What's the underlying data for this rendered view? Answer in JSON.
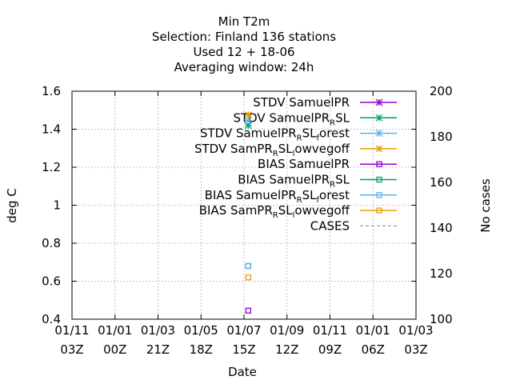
{
  "chart_data": {
    "type": "scatter",
    "title_lines": [
      "Min T2m",
      "Selection: Finland     136 stations",
      "Used  12 + 18-06",
      "Averaging window: 24h"
    ],
    "xlabel": "Date",
    "ylabel": "deg C",
    "y2label": "No cases",
    "ylim": [
      0.4,
      1.6
    ],
    "y2lim": [
      100,
      200
    ],
    "x_ticks": [
      {
        "line1": "01/11",
        "line2": "03Z"
      },
      {
        "line1": "01/01",
        "line2": "00Z"
      },
      {
        "line1": "01/03",
        "line2": "21Z"
      },
      {
        "line1": "01/05",
        "line2": "18Z"
      },
      {
        "line1": "01/07",
        "line2": "15Z"
      },
      {
        "line1": "01/09",
        "line2": "12Z"
      },
      {
        "line1": "01/11",
        "line2": "09Z"
      },
      {
        "line1": "01/01",
        "line2": "06Z"
      },
      {
        "line1": "01/03",
        "line2": "03Z"
      }
    ],
    "y_ticks": [
      "0.4",
      "0.6",
      "0.8",
      "1",
      "1.2",
      "1.4",
      "1.6"
    ],
    "y2_ticks": [
      "100",
      "120",
      "140",
      "160",
      "180",
      "200"
    ],
    "grid": true,
    "legend_position": "top-right",
    "series": [
      {
        "name": "STDV SamuelPR",
        "marker": "x-star",
        "color": "#9400d3",
        "points": []
      },
      {
        "name": "STDV SamuelPR_RSL",
        "marker": "x-star",
        "color": "#009e73",
        "points": [
          {
            "x": 4.1,
            "y": 1.42
          }
        ]
      },
      {
        "name": "STDV SamuelPR_RSL_forest",
        "marker": "x-star",
        "color": "#56b4e9",
        "points": [
          {
            "x": 4.1,
            "y": 1.445
          }
        ]
      },
      {
        "name": "STDV SamPR_RSL_lowvegoff",
        "marker": "x-star",
        "color": "#e69f00",
        "points": [
          {
            "x": 4.1,
            "y": 1.475
          }
        ]
      },
      {
        "name": "BIAS SamuelPR",
        "marker": "square",
        "color": "#9400d3",
        "points": [
          {
            "x": 4.1,
            "y": 0.445
          }
        ]
      },
      {
        "name": "BIAS SamuelPR_RSL",
        "marker": "square",
        "color": "#009e73",
        "points": [
          {
            "x": 4.1,
            "y": 0.68
          }
        ]
      },
      {
        "name": "BIAS SamuelPR_RSL_forest",
        "marker": "square",
        "color": "#56b4e9",
        "points": [
          {
            "x": 4.1,
            "y": 0.68
          }
        ]
      },
      {
        "name": "BIAS SamPR_RSL_lowvegoff",
        "marker": "square",
        "color": "#e69f00",
        "points": [
          {
            "x": 4.1,
            "y": 0.62
          }
        ]
      },
      {
        "name": "CASES",
        "marker": "dashed-line",
        "color": "#a0a0a0",
        "points": []
      }
    ],
    "legend_labels": [
      {
        "parts": [
          {
            "t": "STDV SamuelPR"
          }
        ]
      },
      {
        "parts": [
          {
            "t": "STDV SamuelPR"
          },
          {
            "t": "R",
            "sub": true
          },
          {
            "t": "SL"
          }
        ]
      },
      {
        "parts": [
          {
            "t": "STDV SamuelPR"
          },
          {
            "t": "R",
            "sub": true
          },
          {
            "t": "SL"
          },
          {
            "t": "f",
            "sub": true
          },
          {
            "t": "orest"
          }
        ]
      },
      {
        "parts": [
          {
            "t": "STDV SamPR"
          },
          {
            "t": "R",
            "sub": true
          },
          {
            "t": "SL"
          },
          {
            "t": "l",
            "sub": true
          },
          {
            "t": "owvegoff"
          }
        ]
      },
      {
        "parts": [
          {
            "t": "BIAS SamuelPR"
          }
        ]
      },
      {
        "parts": [
          {
            "t": "BIAS SamuelPR"
          },
          {
            "t": "R",
            "sub": true
          },
          {
            "t": "SL"
          }
        ]
      },
      {
        "parts": [
          {
            "t": "BIAS SamuelPR"
          },
          {
            "t": "R",
            "sub": true
          },
          {
            "t": "SL"
          },
          {
            "t": "f",
            "sub": true
          },
          {
            "t": "orest"
          }
        ]
      },
      {
        "parts": [
          {
            "t": "BIAS SamPR"
          },
          {
            "t": "R",
            "sub": true
          },
          {
            "t": "SL"
          },
          {
            "t": "l",
            "sub": true
          },
          {
            "t": "owvegoff"
          }
        ]
      },
      {
        "parts": [
          {
            "t": "CASES"
          }
        ]
      }
    ]
  }
}
